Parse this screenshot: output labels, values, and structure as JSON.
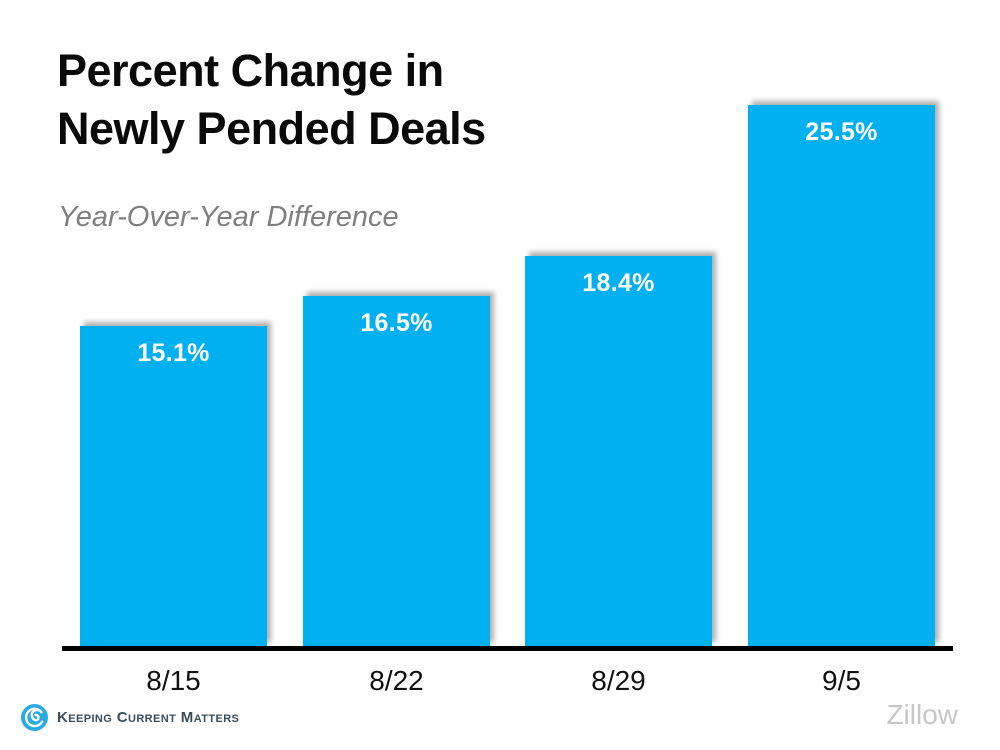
{
  "title": {
    "line1": "Percent Change in",
    "line2": "Newly Pended Deals"
  },
  "subtitle": "Year-Over-Year Difference",
  "chart_data": {
    "type": "bar",
    "categories": [
      "8/15",
      "8/22",
      "8/29",
      "9/5"
    ],
    "values": [
      15.1,
      16.5,
      18.4,
      25.5
    ],
    "value_labels": [
      "15.1%",
      "16.5%",
      "18.4%",
      "25.5%"
    ],
    "title": "Percent Change in Newly Pended Deals",
    "subtitle": "Year-Over-Year Difference",
    "xlabel": "",
    "ylabel": "",
    "ylim": [
      0,
      30
    ],
    "grid": false,
    "legend": false,
    "bar_color": "#00b0f0",
    "value_label_color": "#ffffff",
    "axis_color": "#000000"
  },
  "footer": {
    "brand": "Keeping Current Matters",
    "brand_color": "#3c4d5c",
    "logo_blue": "#29abe2",
    "source": "Zillow",
    "source_color": "#c7c7c7"
  }
}
